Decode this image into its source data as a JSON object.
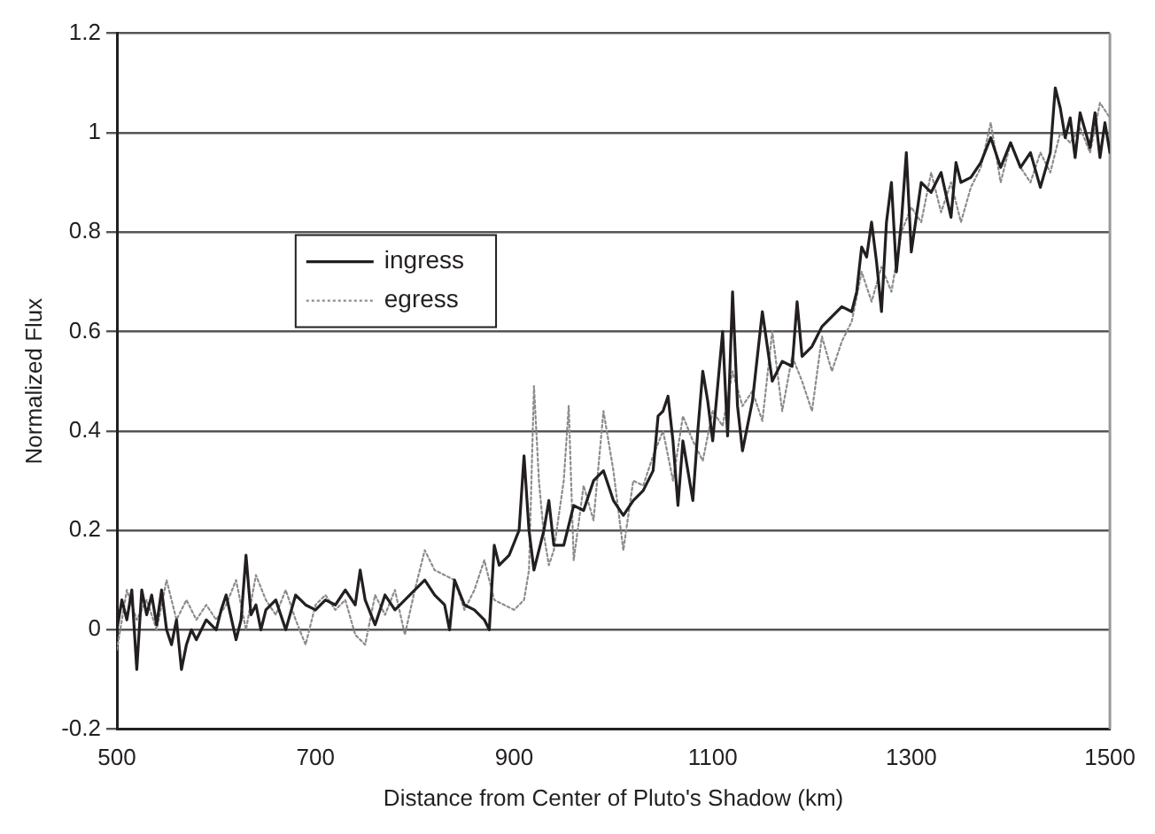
{
  "chart_data": {
    "type": "line",
    "xlabel": "Distance from Center of Pluto's Shadow (km)",
    "ylabel": "Normalized Flux",
    "xlim": [
      500,
      1500
    ],
    "xticks": [
      500,
      700,
      900,
      1100,
      1300,
      1500
    ],
    "ylim": [
      -0.2,
      1.2
    ],
    "yticks": [
      -0.2,
      0,
      0.2,
      0.4,
      0.6,
      0.8,
      1,
      1.2
    ],
    "grid": "y",
    "legend": "top left",
    "marker": "none",
    "series": [
      {
        "name": "ingress",
        "color": "#231f20",
        "line_style": "solid",
        "x": [
          500,
          505,
          510,
          515,
          520,
          525,
          530,
          535,
          540,
          545,
          550,
          555,
          560,
          565,
          570,
          575,
          580,
          590,
          600,
          605,
          610,
          620,
          625,
          630,
          635,
          640,
          645,
          650,
          660,
          670,
          680,
          690,
          700,
          710,
          720,
          730,
          740,
          745,
          750,
          760,
          770,
          780,
          790,
          800,
          810,
          820,
          830,
          835,
          840,
          850,
          860,
          870,
          875,
          880,
          885,
          895,
          905,
          910,
          915,
          920,
          930,
          935,
          940,
          950,
          960,
          970,
          980,
          990,
          1000,
          1010,
          1020,
          1030,
          1040,
          1045,
          1050,
          1055,
          1060,
          1065,
          1070,
          1080,
          1085,
          1090,
          1095,
          1100,
          1110,
          1115,
          1120,
          1125,
          1130,
          1140,
          1145,
          1150,
          1160,
          1170,
          1180,
          1185,
          1190,
          1200,
          1210,
          1220,
          1230,
          1240,
          1245,
          1250,
          1255,
          1260,
          1265,
          1270,
          1275,
          1280,
          1285,
          1290,
          1295,
          1300,
          1310,
          1320,
          1330,
          1340,
          1345,
          1350,
          1360,
          1370,
          1380,
          1390,
          1400,
          1410,
          1420,
          1430,
          1440,
          1445,
          1450,
          1455,
          1460,
          1465,
          1470,
          1480,
          1485,
          1490,
          1495,
          1500
        ],
        "values": [
          0.0,
          0.06,
          0.02,
          0.08,
          -0.08,
          0.08,
          0.03,
          0.07,
          0.01,
          0.08,
          0.0,
          -0.03,
          0.02,
          -0.08,
          -0.03,
          0.0,
          -0.02,
          0.02,
          0.0,
          0.04,
          0.07,
          -0.02,
          0.02,
          0.15,
          0.03,
          0.05,
          0.0,
          0.04,
          0.06,
          0.0,
          0.07,
          0.05,
          0.04,
          0.06,
          0.05,
          0.08,
          0.05,
          0.12,
          0.06,
          0.01,
          0.07,
          0.04,
          0.06,
          0.08,
          0.1,
          0.07,
          0.05,
          0.0,
          0.1,
          0.05,
          0.04,
          0.02,
          0.0,
          0.17,
          0.13,
          0.15,
          0.2,
          0.35,
          0.2,
          0.12,
          0.2,
          0.26,
          0.17,
          0.17,
          0.25,
          0.24,
          0.3,
          0.32,
          0.26,
          0.23,
          0.26,
          0.28,
          0.32,
          0.43,
          0.44,
          0.47,
          0.38,
          0.25,
          0.38,
          0.26,
          0.4,
          0.52,
          0.46,
          0.38,
          0.6,
          0.39,
          0.68,
          0.45,
          0.36,
          0.46,
          0.55,
          0.64,
          0.5,
          0.54,
          0.53,
          0.66,
          0.55,
          0.57,
          0.61,
          0.63,
          0.65,
          0.64,
          0.68,
          0.77,
          0.75,
          0.82,
          0.74,
          0.64,
          0.82,
          0.9,
          0.72,
          0.82,
          0.96,
          0.76,
          0.9,
          0.88,
          0.92,
          0.83,
          0.94,
          0.9,
          0.91,
          0.94,
          0.99,
          0.93,
          0.98,
          0.93,
          0.96,
          0.89,
          0.96,
          1.09,
          1.05,
          0.99,
          1.03,
          0.95,
          1.04,
          0.97,
          1.04,
          0.95,
          1.02,
          0.96
        ]
      },
      {
        "name": "egress",
        "color": "#8c8c8c",
        "line_style": "dotted",
        "x": [
          500,
          510,
          520,
          530,
          540,
          550,
          560,
          570,
          580,
          590,
          600,
          610,
          620,
          630,
          640,
          650,
          660,
          670,
          680,
          690,
          700,
          710,
          720,
          730,
          740,
          750,
          760,
          770,
          780,
          790,
          800,
          810,
          820,
          830,
          840,
          850,
          860,
          870,
          880,
          890,
          900,
          910,
          915,
          920,
          925,
          930,
          935,
          940,
          950,
          955,
          960,
          970,
          980,
          990,
          1000,
          1010,
          1020,
          1030,
          1040,
          1050,
          1060,
          1070,
          1080,
          1090,
          1100,
          1110,
          1120,
          1130,
          1140,
          1150,
          1160,
          1170,
          1180,
          1190,
          1200,
          1210,
          1220,
          1230,
          1240,
          1250,
          1260,
          1270,
          1280,
          1290,
          1300,
          1310,
          1320,
          1330,
          1340,
          1350,
          1360,
          1370,
          1380,
          1390,
          1400,
          1410,
          1420,
          1430,
          1440,
          1450,
          1460,
          1470,
          1480,
          1490,
          1500
        ],
        "values": [
          -0.04,
          0.08,
          0.02,
          0.06,
          0.0,
          0.1,
          0.02,
          0.06,
          0.02,
          0.05,
          0.02,
          0.05,
          0.1,
          0.0,
          0.11,
          0.06,
          0.03,
          0.08,
          0.02,
          -0.03,
          0.05,
          0.07,
          0.04,
          0.06,
          -0.01,
          -0.03,
          0.07,
          0.03,
          0.08,
          -0.01,
          0.08,
          0.16,
          0.12,
          0.11,
          0.1,
          0.04,
          0.08,
          0.14,
          0.06,
          0.05,
          0.04,
          0.06,
          0.12,
          0.49,
          0.3,
          0.19,
          0.13,
          0.16,
          0.3,
          0.45,
          0.14,
          0.29,
          0.22,
          0.44,
          0.32,
          0.16,
          0.3,
          0.29,
          0.35,
          0.4,
          0.3,
          0.43,
          0.38,
          0.34,
          0.44,
          0.41,
          0.52,
          0.45,
          0.48,
          0.42,
          0.6,
          0.44,
          0.55,
          0.5,
          0.44,
          0.59,
          0.52,
          0.58,
          0.62,
          0.72,
          0.66,
          0.73,
          0.68,
          0.8,
          0.85,
          0.82,
          0.92,
          0.84,
          0.9,
          0.82,
          0.89,
          0.93,
          1.02,
          0.9,
          0.98,
          0.93,
          0.9,
          0.96,
          0.92,
          1.0,
          0.98,
          1.01,
          0.96,
          1.06,
          1.03
        ]
      }
    ]
  }
}
